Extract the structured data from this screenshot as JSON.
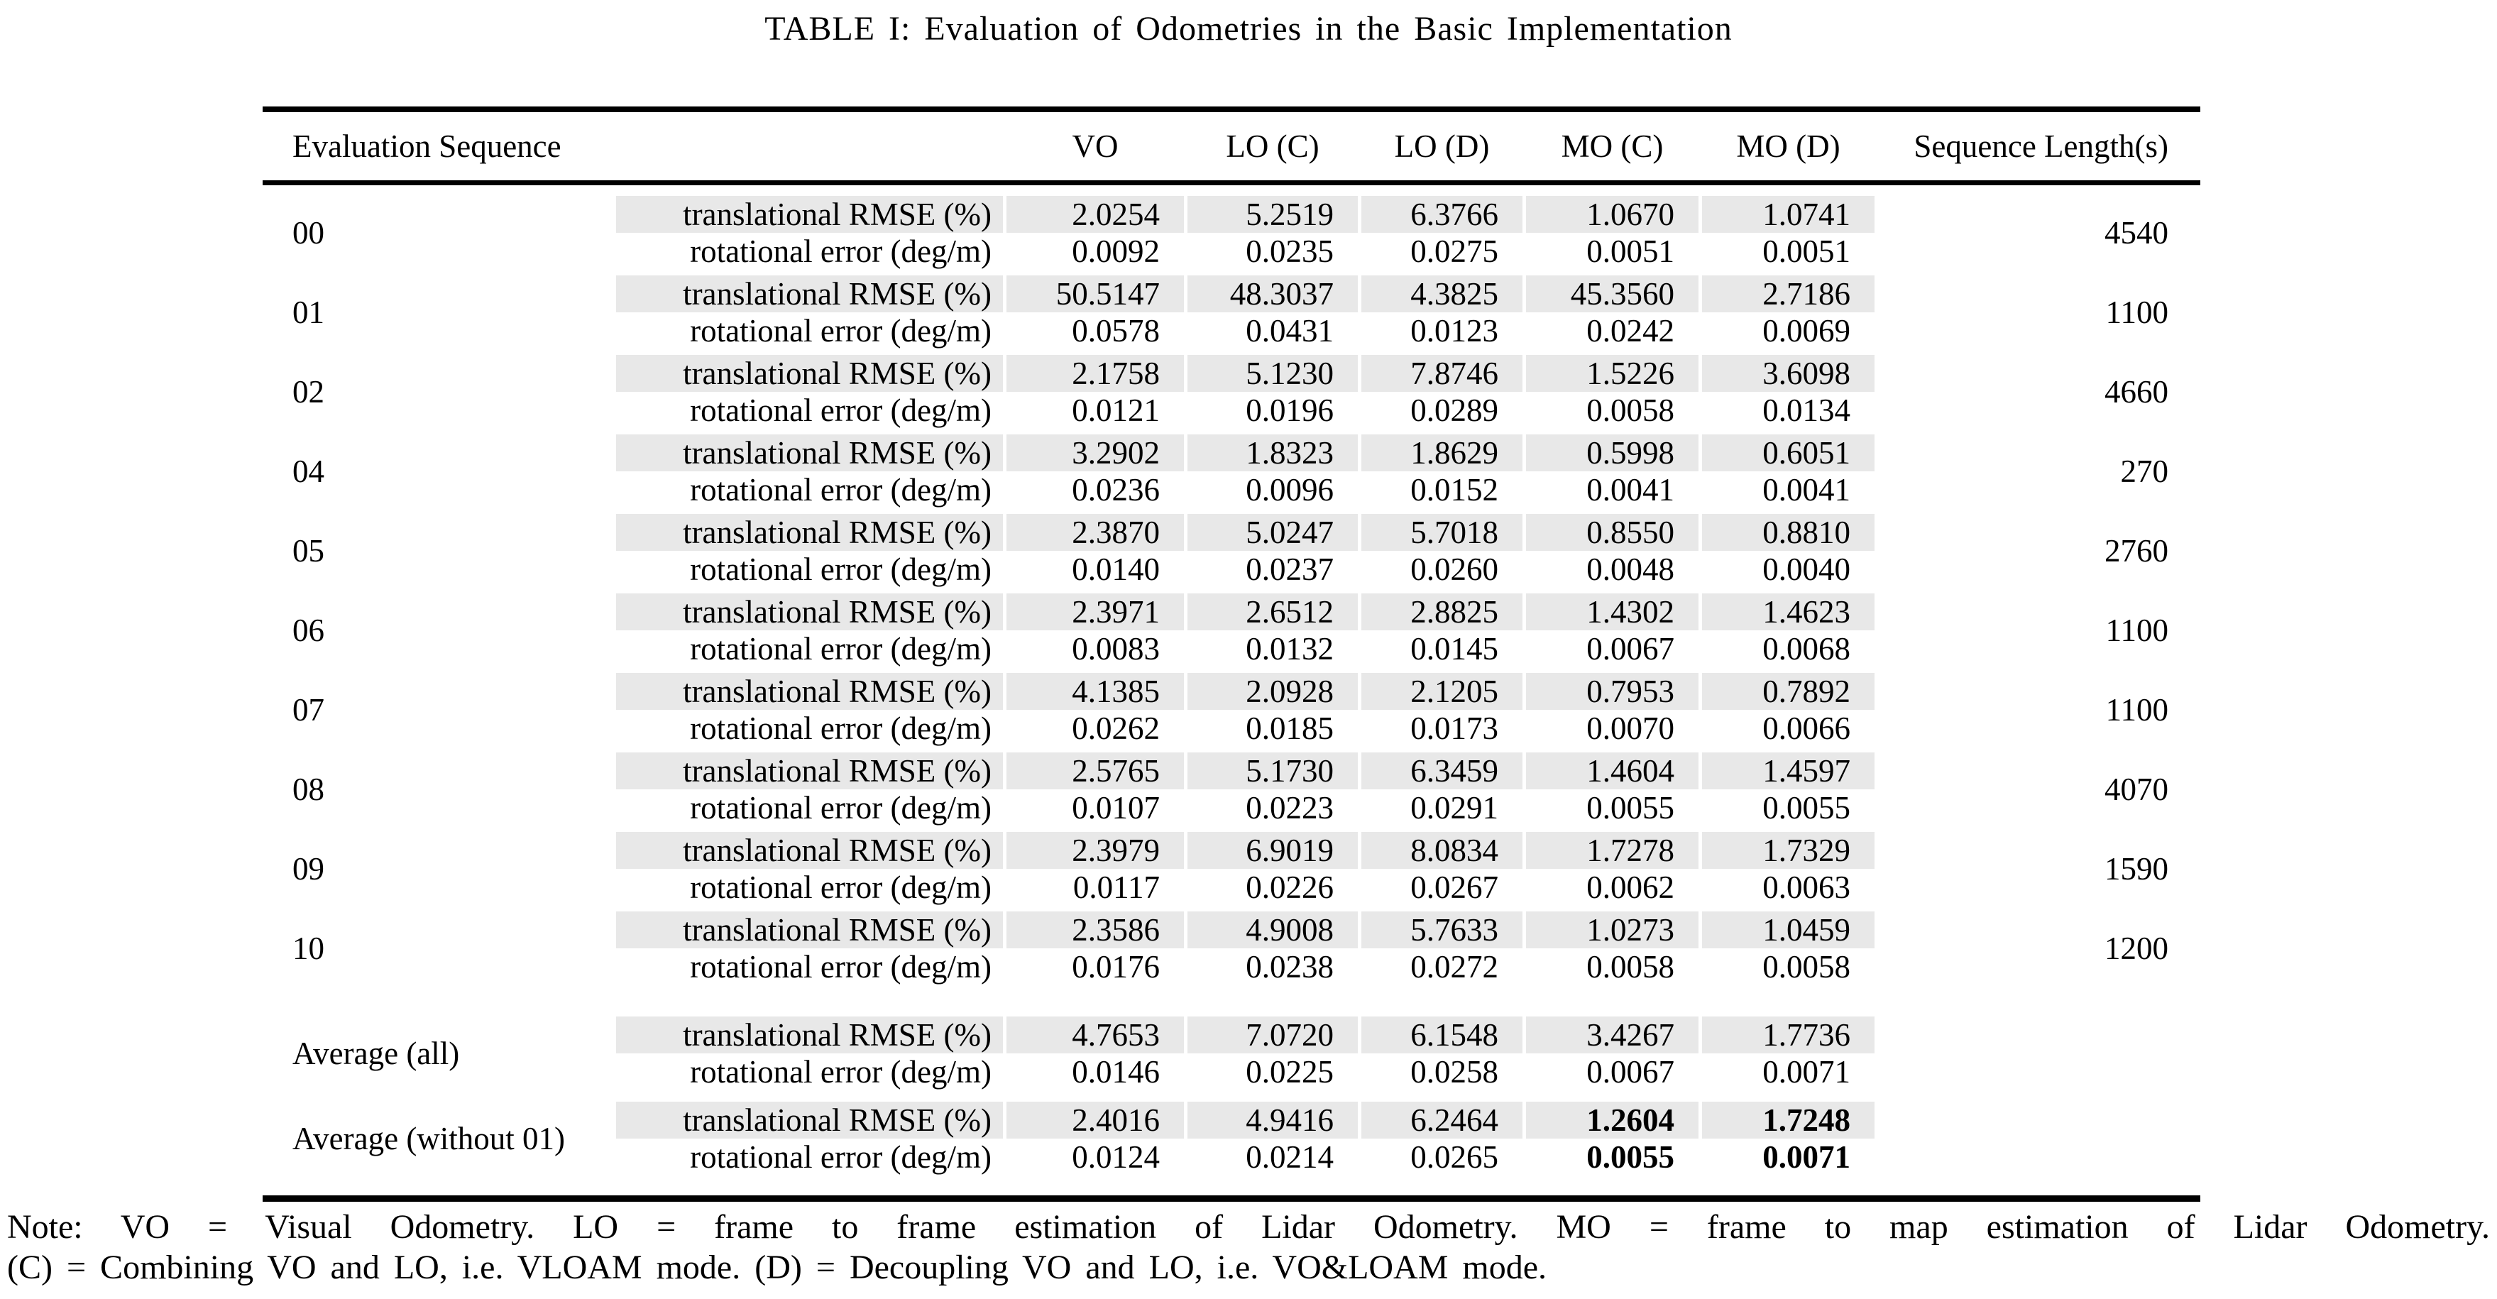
{
  "title": "TABLE I: Evaluation of Odometries in the Basic Implementation",
  "colors": {
    "row_shading": "#e8e8e8",
    "rule": "#000000",
    "background": "#ffffff"
  },
  "table": {
    "headers": {
      "evaluation_sequence": "Evaluation Sequence",
      "vo": "VO",
      "lo_c": "LO (C)",
      "lo_d": "LO (D)",
      "mo_c": "MO (C)",
      "mo_d": "MO (D)",
      "sequence_length": "Sequence Length(s)"
    },
    "groups": [
      {
        "sequence": "00",
        "length": "4540",
        "bold_mo": false,
        "translational": {
          "label": "translational RMSE (%)",
          "vo": "2.0254",
          "lo_c": "5.2519",
          "lo_d": "6.3766",
          "mo_c": "1.0670",
          "mo_d": "1.0741"
        },
        "rotational": {
          "label": "rotational error (deg/m)",
          "vo": "0.0092",
          "lo_c": "0.0235",
          "lo_d": "0.0275",
          "mo_c": "0.0051",
          "mo_d": "0.0051"
        }
      },
      {
        "sequence": "01",
        "length": "1100",
        "bold_mo": false,
        "translational": {
          "label": "translational RMSE (%)",
          "vo": "50.5147",
          "lo_c": "48.3037",
          "lo_d": "4.3825",
          "mo_c": "45.3560",
          "mo_d": "2.7186"
        },
        "rotational": {
          "label": "rotational error (deg/m)",
          "vo": "0.0578",
          "lo_c": "0.0431",
          "lo_d": "0.0123",
          "mo_c": "0.0242",
          "mo_d": "0.0069"
        }
      },
      {
        "sequence": "02",
        "length": "4660",
        "bold_mo": false,
        "translational": {
          "label": "translational RMSE (%)",
          "vo": "2.1758",
          "lo_c": "5.1230",
          "lo_d": "7.8746",
          "mo_c": "1.5226",
          "mo_d": "3.6098"
        },
        "rotational": {
          "label": "rotational error (deg/m)",
          "vo": "0.0121",
          "lo_c": "0.0196",
          "lo_d": "0.0289",
          "mo_c": "0.0058",
          "mo_d": "0.0134"
        }
      },
      {
        "sequence": "04",
        "length": "270",
        "bold_mo": false,
        "translational": {
          "label": "translational RMSE (%)",
          "vo": "3.2902",
          "lo_c": "1.8323",
          "lo_d": "1.8629",
          "mo_c": "0.5998",
          "mo_d": "0.6051"
        },
        "rotational": {
          "label": "rotational error (deg/m)",
          "vo": "0.0236",
          "lo_c": "0.0096",
          "lo_d": "0.0152",
          "mo_c": "0.0041",
          "mo_d": "0.0041"
        }
      },
      {
        "sequence": "05",
        "length": "2760",
        "bold_mo": false,
        "translational": {
          "label": "translational RMSE (%)",
          "vo": "2.3870",
          "lo_c": "5.0247",
          "lo_d": "5.7018",
          "mo_c": "0.8550",
          "mo_d": "0.8810"
        },
        "rotational": {
          "label": "rotational error (deg/m)",
          "vo": "0.0140",
          "lo_c": "0.0237",
          "lo_d": "0.0260",
          "mo_c": "0.0048",
          "mo_d": "0.0040"
        }
      },
      {
        "sequence": "06",
        "length": "1100",
        "bold_mo": false,
        "translational": {
          "label": "translational RMSE (%)",
          "vo": "2.3971",
          "lo_c": "2.6512",
          "lo_d": "2.8825",
          "mo_c": "1.4302",
          "mo_d": "1.4623"
        },
        "rotational": {
          "label": "rotational error (deg/m)",
          "vo": "0.0083",
          "lo_c": "0.0132",
          "lo_d": "0.0145",
          "mo_c": "0.0067",
          "mo_d": "0.0068"
        }
      },
      {
        "sequence": "07",
        "length": "1100",
        "bold_mo": false,
        "translational": {
          "label": "translational RMSE (%)",
          "vo": "4.1385",
          "lo_c": "2.0928",
          "lo_d": "2.1205",
          "mo_c": "0.7953",
          "mo_d": "0.7892"
        },
        "rotational": {
          "label": "rotational error (deg/m)",
          "vo": "0.0262",
          "lo_c": "0.0185",
          "lo_d": "0.0173",
          "mo_c": "0.0070",
          "mo_d": "0.0066"
        }
      },
      {
        "sequence": "08",
        "length": "4070",
        "bold_mo": false,
        "translational": {
          "label": "translational RMSE (%)",
          "vo": "2.5765",
          "lo_c": "5.1730",
          "lo_d": "6.3459",
          "mo_c": "1.4604",
          "mo_d": "1.4597"
        },
        "rotational": {
          "label": "rotational error (deg/m)",
          "vo": "0.0107",
          "lo_c": "0.0223",
          "lo_d": "0.0291",
          "mo_c": "0.0055",
          "mo_d": "0.0055"
        }
      },
      {
        "sequence": "09",
        "length": "1590",
        "bold_mo": false,
        "translational": {
          "label": "translational RMSE (%)",
          "vo": "2.3979",
          "lo_c": "6.9019",
          "lo_d": "8.0834",
          "mo_c": "1.7278",
          "mo_d": "1.7329"
        },
        "rotational": {
          "label": "rotational error (deg/m)",
          "vo": "0.0117",
          "lo_c": "0.0226",
          "lo_d": "0.0267",
          "mo_c": "0.0062",
          "mo_d": "0.0063"
        }
      },
      {
        "sequence": "10",
        "length": "1200",
        "bold_mo": false,
        "translational": {
          "label": "translational RMSE (%)",
          "vo": "2.3586",
          "lo_c": "4.9008",
          "lo_d": "5.7633",
          "mo_c": "1.0273",
          "mo_d": "1.0459"
        },
        "rotational": {
          "label": "rotational error (deg/m)",
          "vo": "0.0176",
          "lo_c": "0.0238",
          "lo_d": "0.0272",
          "mo_c": "0.0058",
          "mo_d": "0.0058"
        }
      }
    ],
    "average_groups": [
      {
        "sequence": "Average (all)",
        "length": "",
        "bold_mo": false,
        "translational": {
          "label": "translational RMSE (%)",
          "vo": "4.7653",
          "lo_c": "7.0720",
          "lo_d": "6.1548",
          "mo_c": "3.4267",
          "mo_d": "1.7736"
        },
        "rotational": {
          "label": "rotational error (deg/m)",
          "vo": "0.0146",
          "lo_c": "0.0225",
          "lo_d": "0.0258",
          "mo_c": "0.0067",
          "mo_d": "0.0071"
        }
      },
      {
        "sequence": "Average (without 01)",
        "length": "",
        "bold_mo": true,
        "translational": {
          "label": "translational RMSE (%)",
          "vo": "2.4016",
          "lo_c": "4.9416",
          "lo_d": "6.2464",
          "mo_c": "1.2604",
          "mo_d": "1.7248"
        },
        "rotational": {
          "label": "rotational error (deg/m)",
          "vo": "0.0124",
          "lo_c": "0.0214",
          "lo_d": "0.0265",
          "mo_c": "0.0055",
          "mo_d": "0.0071"
        }
      }
    ]
  },
  "note": {
    "line1": "Note: VO = Visual Odometry. LO = frame to frame estimation of Lidar Odometry. MO = frame to map estimation of Lidar Odometry.",
    "line2": "(C) = Combining VO and LO, i.e. VLOAM mode. (D) = Decoupling VO and LO, i.e. VO&LOAM mode."
  }
}
